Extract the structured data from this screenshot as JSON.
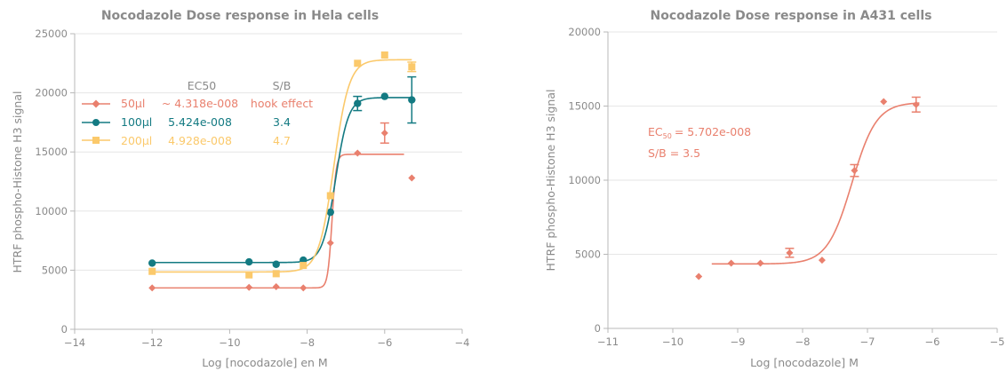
{
  "chart_data": [
    {
      "type": "scatter",
      "title": "Nocodazole Dose response in Hela cells",
      "xlabel": "Log [nocodazole] en M",
      "ylabel": "HTRF phospho-Histone H3 signal",
      "xlim": [
        -14,
        -4
      ],
      "ylim": [
        0,
        25000
      ],
      "xticks": [
        -14,
        -12,
        -10,
        -8,
        -6,
        -4
      ],
      "yticks": [
        0,
        5000,
        10000,
        15000,
        20000,
        25000
      ],
      "grid": "horizontal",
      "legend_headers": {
        "ec50": "EC50",
        "sb": "S/B"
      },
      "series": [
        {
          "name": "50µl",
          "color": "#e9806e",
          "marker": "diamond",
          "ec50": "~ 4.318e-008",
          "sb": "hook effect",
          "x": [
            -12,
            -9.5,
            -8.8,
            -8.1,
            -7.4,
            -6.7,
            -6.0,
            -5.3
          ],
          "y": [
            3500,
            3550,
            3600,
            3500,
            7300,
            14900,
            16600,
            12800
          ],
          "err": [
            0,
            0,
            0,
            0,
            0,
            0,
            850,
            0
          ],
          "fit": {
            "bottom": 3500,
            "top": 14800,
            "logec50": -7.36,
            "hill": 8,
            "x_end": -5.5
          }
        },
        {
          "name": "100µl",
          "color": "#137a82",
          "marker": "circle",
          "ec50": "5.424e-008",
          "sb": "3.4",
          "x": [
            -12,
            -9.5,
            -8.8,
            -8.1,
            -7.4,
            -6.7,
            -6.0,
            -5.3
          ],
          "y": [
            5600,
            5700,
            5500,
            5850,
            9900,
            19100,
            19700,
            19400
          ],
          "err": [
            0,
            0,
            0,
            0,
            0,
            600,
            0,
            1950
          ],
          "fit": {
            "bottom": 5650,
            "top": 19600,
            "logec50": -7.27,
            "hill": 2.6,
            "x_end": -5.3
          }
        },
        {
          "name": "200µl",
          "color": "#fbc96b",
          "marker": "square",
          "ec50": "4.928e-008",
          "sb": "4.7",
          "x": [
            -12,
            -9.5,
            -8.8,
            -8.1,
            -7.4,
            -6.7,
            -6.0,
            -5.3
          ],
          "y": [
            4900,
            4600,
            4700,
            5400,
            11300,
            22500,
            23200,
            22200
          ],
          "err": [
            0,
            0,
            0,
            0,
            0,
            0,
            0,
            400
          ],
          "fit": {
            "bottom": 4850,
            "top": 22800,
            "logec50": -7.31,
            "hill": 2.2,
            "x_end": -5.3
          }
        }
      ]
    },
    {
      "type": "scatter",
      "title": "Nocodazole Dose response in A431 cells",
      "xlabel": "Log [nocodazole] M",
      "ylabel": "HTRF phospho-Histone H3 signal",
      "xlim": [
        -11,
        -5
      ],
      "ylim": [
        0,
        20000
      ],
      "xticks": [
        -11,
        -10,
        -9,
        -8,
        -7,
        -6,
        -5
      ],
      "yticks": [
        0,
        5000,
        10000,
        15000,
        20000
      ],
      "grid": "horizontal",
      "annotation": {
        "ec_prefix": "EC",
        "ec_sub": "50",
        "ec_value": "= 5.702e-008",
        "sb": "S/B = 3.5"
      },
      "series": [
        {
          "color": "#e9806e",
          "marker": "diamond",
          "x": [
            -9.6,
            -9.1,
            -8.65,
            -8.2,
            -7.7,
            -7.2,
            -6.75,
            -6.25
          ],
          "y": [
            3500,
            4400,
            4400,
            5100,
            4600,
            10650,
            15300,
            15100
          ],
          "err": [
            0,
            0,
            0,
            300,
            0,
            400,
            0,
            500
          ],
          "fit": {
            "bottom": 4350,
            "top": 15250,
            "logec50": -7.24,
            "hill": 2.3,
            "x_start": -9.4,
            "x_end": -6.2
          }
        }
      ]
    }
  ]
}
